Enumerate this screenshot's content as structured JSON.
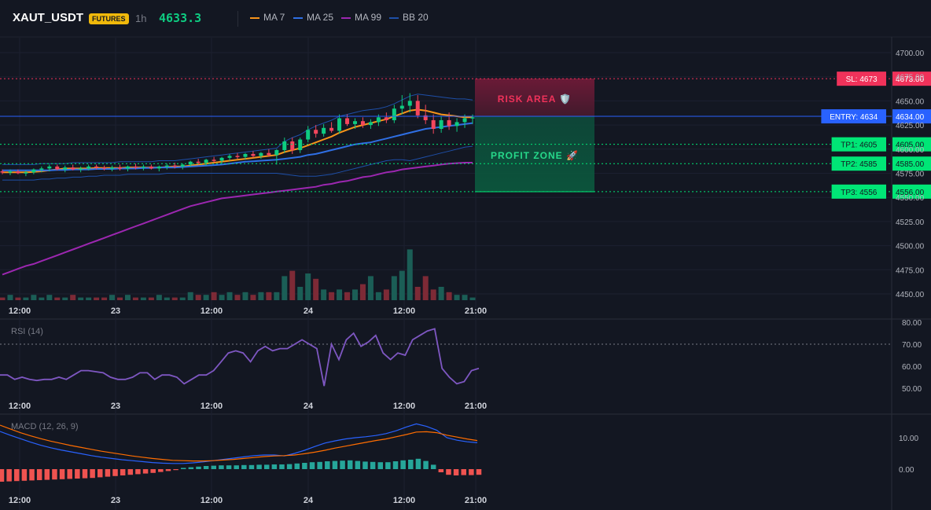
{
  "header": {
    "symbol": "XAUT_USDT",
    "badge": "FUTURES",
    "timeframe": "1h",
    "price": "4633.3",
    "legend": [
      {
        "label": "MA 7",
        "color": "#f7931a"
      },
      {
        "label": "MA 25",
        "color": "#2f6fe4"
      },
      {
        "label": "MA 99",
        "color": "#9c27b0"
      },
      {
        "label": "BB 20",
        "color": "#1e4fa8"
      }
    ]
  },
  "zones": {
    "risk_label": "RISK AREA 🛡️",
    "profit_label": "PROFIT ZONE 🚀"
  },
  "levels": [
    {
      "label": "SL: 4673",
      "value": 4673,
      "axis": "4673.00",
      "color": "#f0325a",
      "text_color": "#ffffff",
      "style": "dotted"
    },
    {
      "label": "ENTRY: 4634",
      "value": 4634,
      "axis": "4634.00",
      "color": "#2962ff",
      "text_color": "#ffffff",
      "style": "solid"
    },
    {
      "label": "TP1: 4605",
      "value": 4605,
      "axis": "4605.00",
      "color": "#00e676",
      "text_color": "#131722",
      "style": "dotted"
    },
    {
      "label": "TP2: 4585",
      "value": 4585,
      "axis": "4585.00",
      "color": "#00e676",
      "text_color": "#131722",
      "style": "dotted"
    },
    {
      "label": "TP3: 4556",
      "value": 4556,
      "axis": "4556.00",
      "color": "#00e676",
      "text_color": "#131722",
      "style": "dotted"
    }
  ],
  "time_labels": [
    "12:00",
    "23",
    "12:00",
    "24",
    "12:00",
    "21:00"
  ],
  "rsi_title": "RSI (14)",
  "macd_title": "MACD (12, 26, 9)",
  "chart_data": [
    {
      "type": "candlestick",
      "title": "XAUT_USDT 1h",
      "ylim": [
        4440,
        4712
      ],
      "y_ticks": [
        4450,
        4475,
        4500,
        4525,
        4550,
        4575,
        4600,
        4625,
        4650,
        4675,
        4700
      ],
      "y_tick_labels": [
        "4450.00",
        "4475.00",
        "4500.00",
        "4525.00",
        "4550.00",
        "4575.00",
        "4600.00",
        "4625.00",
        "4650.00",
        "4675.00",
        "4700.00"
      ],
      "ohlc": [
        [
          4577,
          4579,
          4574,
          4576
        ],
        [
          4576,
          4579,
          4573,
          4577
        ],
        [
          4577,
          4579,
          4574,
          4575
        ],
        [
          4575,
          4578,
          4572,
          4576
        ],
        [
          4576,
          4580,
          4574,
          4579
        ],
        [
          4579,
          4582,
          4576,
          4580
        ],
        [
          4580,
          4584,
          4577,
          4582
        ],
        [
          4582,
          4584,
          4578,
          4579
        ],
        [
          4579,
          4583,
          4576,
          4581
        ],
        [
          4581,
          4584,
          4578,
          4579
        ],
        [
          4579,
          4582,
          4576,
          4580
        ],
        [
          4580,
          4584,
          4578,
          4582
        ],
        [
          4582,
          4584,
          4579,
          4581
        ],
        [
          4581,
          4583,
          4578,
          4580
        ],
        [
          4580,
          4583,
          4577,
          4581
        ],
        [
          4581,
          4584,
          4578,
          4580
        ],
        [
          4580,
          4583,
          4577,
          4582
        ],
        [
          4582,
          4585,
          4579,
          4581
        ],
        [
          4581,
          4584,
          4578,
          4582
        ],
        [
          4582,
          4584,
          4579,
          4580
        ],
        [
          4580,
          4583,
          4577,
          4582
        ],
        [
          4582,
          4585,
          4579,
          4583
        ],
        [
          4583,
          4586,
          4580,
          4582
        ],
        [
          4582,
          4585,
          4579,
          4584
        ],
        [
          4584,
          4588,
          4582,
          4587
        ],
        [
          4587,
          4590,
          4584,
          4586
        ],
        [
          4586,
          4590,
          4583,
          4589
        ],
        [
          4589,
          4592,
          4586,
          4588
        ],
        [
          4588,
          4592,
          4585,
          4591
        ],
        [
          4591,
          4595,
          4588,
          4593
        ],
        [
          4593,
          4596,
          4590,
          4592
        ],
        [
          4592,
          4596,
          4589,
          4595
        ],
        [
          4595,
          4598,
          4591,
          4593
        ],
        [
          4593,
          4597,
          4590,
          4596
        ],
        [
          4596,
          4600,
          4592,
          4594
        ],
        [
          4594,
          4600,
          4584,
          4599
        ],
        [
          4599,
          4612,
          4596,
          4608
        ],
        [
          4608,
          4612,
          4595,
          4599
        ],
        [
          4599,
          4612,
          4596,
          4610
        ],
        [
          4610,
          4624,
          4607,
          4620
        ],
        [
          4620,
          4625,
          4612,
          4616
        ],
        [
          4616,
          4626,
          4613,
          4622
        ],
        [
          4622,
          4628,
          4617,
          4619
        ],
        [
          4619,
          4636,
          4616,
          4632
        ],
        [
          4632,
          4636,
          4624,
          4626
        ],
        [
          4626,
          4632,
          4621,
          4629
        ],
        [
          4629,
          4633,
          4622,
          4625
        ],
        [
          4625,
          4631,
          4621,
          4628
        ],
        [
          4628,
          4636,
          4624,
          4633
        ],
        [
          4633,
          4638,
          4627,
          4630
        ],
        [
          4630,
          4646,
          4627,
          4642
        ],
        [
          4642,
          4656,
          4636,
          4645
        ],
        [
          4645,
          4658,
          4638,
          4650
        ],
        [
          4650,
          4656,
          4632,
          4635
        ],
        [
          4635,
          4646,
          4626,
          4630
        ],
        [
          4630,
          4636,
          4616,
          4621
        ],
        [
          4621,
          4634,
          4617,
          4630
        ],
        [
          4630,
          4638,
          4620,
          4624
        ],
        [
          4624,
          4632,
          4618,
          4628
        ],
        [
          4628,
          4636,
          4622,
          4632
        ],
        [
          4632,
          4636,
          4626,
          4633
        ]
      ],
      "volume": [
        1,
        2,
        1,
        1,
        2,
        1,
        2,
        1,
        1,
        2,
        1,
        1,
        1,
        1,
        2,
        1,
        2,
        1,
        1,
        1,
        2,
        1,
        1,
        1,
        3,
        2,
        2,
        3,
        2,
        3,
        2,
        3,
        2,
        3,
        3,
        3,
        9,
        11,
        5,
        10,
        8,
        4,
        3,
        4,
        3,
        4,
        6,
        9,
        3,
        4,
        9,
        11,
        19,
        5,
        9,
        4,
        5,
        3,
        2,
        2,
        1
      ],
      "series": [
        {
          "name": "MA 7",
          "color": "#f7931a",
          "values": [
            4576,
            4576,
            4576,
            4576,
            4576.5,
            4577,
            4578,
            4579,
            4580,
            4580,
            4580,
            4580,
            4580.5,
            4580.5,
            4580.5,
            4580.5,
            4581,
            4581,
            4581,
            4581,
            4581,
            4581.5,
            4582,
            4582,
            4583,
            4584,
            4585,
            4586,
            4587,
            4588,
            4589,
            4590,
            4591,
            4592,
            4593,
            4594,
            4597,
            4599,
            4601,
            4604,
            4607,
            4610,
            4613,
            4617,
            4620,
            4623,
            4625,
            4627,
            4629,
            4631,
            4634,
            4637,
            4640,
            4641,
            4640,
            4638,
            4636,
            4635,
            4634,
            4633,
            4633
          ]
        },
        {
          "name": "MA 25",
          "color": "#2f6fe4",
          "values": [
            4578,
            4578,
            4578,
            4578,
            4578,
            4578,
            4578,
            4578.5,
            4578.5,
            4579,
            4579,
            4579,
            4579.5,
            4579.5,
            4579.5,
            4580,
            4580,
            4580,
            4580.5,
            4580.5,
            4581,
            4581,
            4581,
            4581.5,
            4582,
            4582.5,
            4583,
            4583.5,
            4584,
            4585,
            4586,
            4587,
            4587.5,
            4588,
            4588.5,
            4589,
            4590,
            4591,
            4592,
            4594,
            4595,
            4597,
            4599,
            4601,
            4603,
            4605,
            4606,
            4607,
            4609,
            4611,
            4613,
            4615,
            4617,
            4619,
            4621,
            4622,
            4623,
            4624,
            4625,
            4626,
            4627
          ]
        },
        {
          "name": "MA 99",
          "color": "#9c27b0",
          "values": [
            4470,
            4473,
            4476,
            4479,
            4481,
            4484,
            4487,
            4490,
            4493,
            4496,
            4499,
            4502,
            4505,
            4508,
            4511,
            4514,
            4517,
            4520,
            4523,
            4526,
            4529,
            4532,
            4535,
            4538,
            4541,
            4543,
            4545,
            4547,
            4549,
            4550,
            4551,
            4552,
            4553,
            4554,
            4555,
            4556,
            4557,
            4558,
            4559,
            4560,
            4561,
            4563,
            4564,
            4566,
            4567,
            4569,
            4571,
            4572,
            4574,
            4576,
            4577,
            4579,
            4580,
            4581,
            4582,
            4583,
            4584,
            4585,
            4585.5,
            4586,
            4586
          ]
        },
        {
          "name": "BB 20 upper",
          "color": "#1e4fa8",
          "values": [
            4584,
            4584,
            4584,
            4584,
            4584,
            4585,
            4585,
            4585,
            4585,
            4586,
            4586,
            4586,
            4586,
            4586,
            4586,
            4587,
            4587,
            4587,
            4587,
            4587,
            4588,
            4588,
            4588,
            4589,
            4590,
            4591,
            4592,
            4593,
            4594,
            4595,
            4596,
            4597,
            4598,
            4599,
            4600,
            4601,
            4608,
            4612,
            4615,
            4620,
            4624,
            4627,
            4630,
            4634,
            4636,
            4638,
            4640,
            4641,
            4642,
            4644,
            4647,
            4651,
            4655,
            4657,
            4656,
            4655,
            4654,
            4653,
            4652,
            4652,
            4651
          ]
        },
        {
          "name": "BB 20 lower",
          "color": "#1e4fa8",
          "values": [
            4568,
            4568,
            4568,
            4568,
            4568,
            4569,
            4569,
            4570,
            4570,
            4571,
            4571,
            4572,
            4572,
            4573,
            4573,
            4573,
            4574,
            4574,
            4574,
            4574,
            4574,
            4575,
            4575,
            4575,
            4575,
            4575,
            4575,
            4575,
            4575,
            4575,
            4575,
            4575,
            4575,
            4575,
            4575,
            4575,
            4574,
            4573,
            4572,
            4572,
            4572,
            4573,
            4574,
            4576,
            4578,
            4580,
            4582,
            4584,
            4586,
            4588,
            4589,
            4589,
            4588,
            4590,
            4592,
            4594,
            4596,
            4598,
            4600,
            4602,
            4603
          ]
        }
      ]
    },
    {
      "type": "line",
      "title": "RSI (14)",
      "ylim": [
        45,
        81
      ],
      "y_ticks": [
        50,
        60,
        70,
        80
      ],
      "y_tick_labels": [
        "50.00",
        "60.00",
        "70.00",
        "80.00"
      ],
      "reference_line": 70,
      "series": [
        {
          "name": "RSI",
          "color": "#7e57c2",
          "values": [
            56,
            56,
            54,
            55,
            54,
            53.5,
            54,
            54,
            55,
            54,
            56,
            58,
            58,
            57.5,
            57,
            55,
            54,
            54,
            55,
            57,
            57,
            54,
            56,
            56,
            55,
            52,
            54,
            56,
            56,
            58,
            62,
            66,
            67,
            66,
            62,
            67,
            69,
            67,
            68,
            68,
            70,
            72,
            70,
            68,
            51,
            70,
            63,
            72,
            75,
            69,
            71,
            74,
            66,
            63,
            66,
            65,
            72,
            74,
            76,
            77,
            59,
            55,
            52,
            53,
            58,
            59
          ]
        }
      ]
    },
    {
      "type": "line",
      "title": "MACD (12, 26, 9)",
      "ylim": [
        -6.5,
        18
      ],
      "y_ticks": [
        0,
        10
      ],
      "y_tick_labels": [
        "0.00",
        "10.00"
      ],
      "series": [
        {
          "name": "MACD",
          "color": "#2962ff",
          "values": [
            12,
            10.8,
            9.7,
            8.6,
            7.6,
            6.8,
            6.1,
            5.5,
            4.9,
            4.3,
            3.8,
            3.4,
            3,
            2.7,
            2.4,
            2.1,
            1.9,
            1.8,
            1.8,
            2,
            2.3,
            2.7,
            3.1,
            3.5,
            3.9,
            4.3,
            4.5,
            4.5,
            4.2,
            5,
            6,
            7.2,
            8.3,
            9,
            9.6,
            10,
            10.3,
            10.7,
            11.3,
            12.2,
            13.4,
            14.4,
            13.6,
            12.4,
            10,
            9.2,
            8.7,
            8.4
          ]
        },
        {
          "name": "Signal",
          "color": "#ff6d00",
          "values": [
            14,
            12.8,
            11.6,
            10.6,
            9.7,
            8.9,
            8.2,
            7.5,
            6.9,
            6.3,
            5.7,
            5.2,
            4.7,
            4.2,
            3.8,
            3.4,
            3.1,
            2.8,
            2.7,
            2.6,
            2.6,
            2.7,
            2.9,
            3.1,
            3.4,
            3.7,
            4,
            4.2,
            4.3,
            4.5,
            4.9,
            5.4,
            6,
            6.7,
            7.3,
            7.9,
            8.5,
            9.1,
            9.6,
            10.3,
            11,
            11.8,
            11.9,
            11.6,
            10.8,
            10.2,
            9.6,
            9.1
          ]
        }
      ],
      "histogram": [
        -4,
        -3.9,
        -3.8,
        -3.7,
        -3.6,
        -3.5,
        -3.4,
        -3.3,
        -3.2,
        -3.1,
        -3.0,
        -2.9,
        -2.8,
        -2.6,
        -2.4,
        -2.2,
        -2.0,
        -1.8,
        -1.6,
        -1.4,
        -1.2,
        -0.9,
        -0.6,
        -0.3,
        0.4,
        0.6,
        0.8,
        1.0,
        1.1,
        1.2,
        1.2,
        1.2,
        1.3,
        1.3,
        1.4,
        1.4,
        1.5,
        1.5,
        1.6,
        1.8,
        2.0,
        2.2,
        2.3,
        2.5,
        2.6,
        2.7,
        2.8,
        2.6,
        2.4,
        2.3,
        2.2,
        2.2,
        2.5,
        2.8,
        3.0,
        3.3,
        2.6,
        1.4,
        -1.0,
        -1.8,
        -2.0,
        -1.9,
        -1.9,
        -1.8
      ]
    }
  ]
}
